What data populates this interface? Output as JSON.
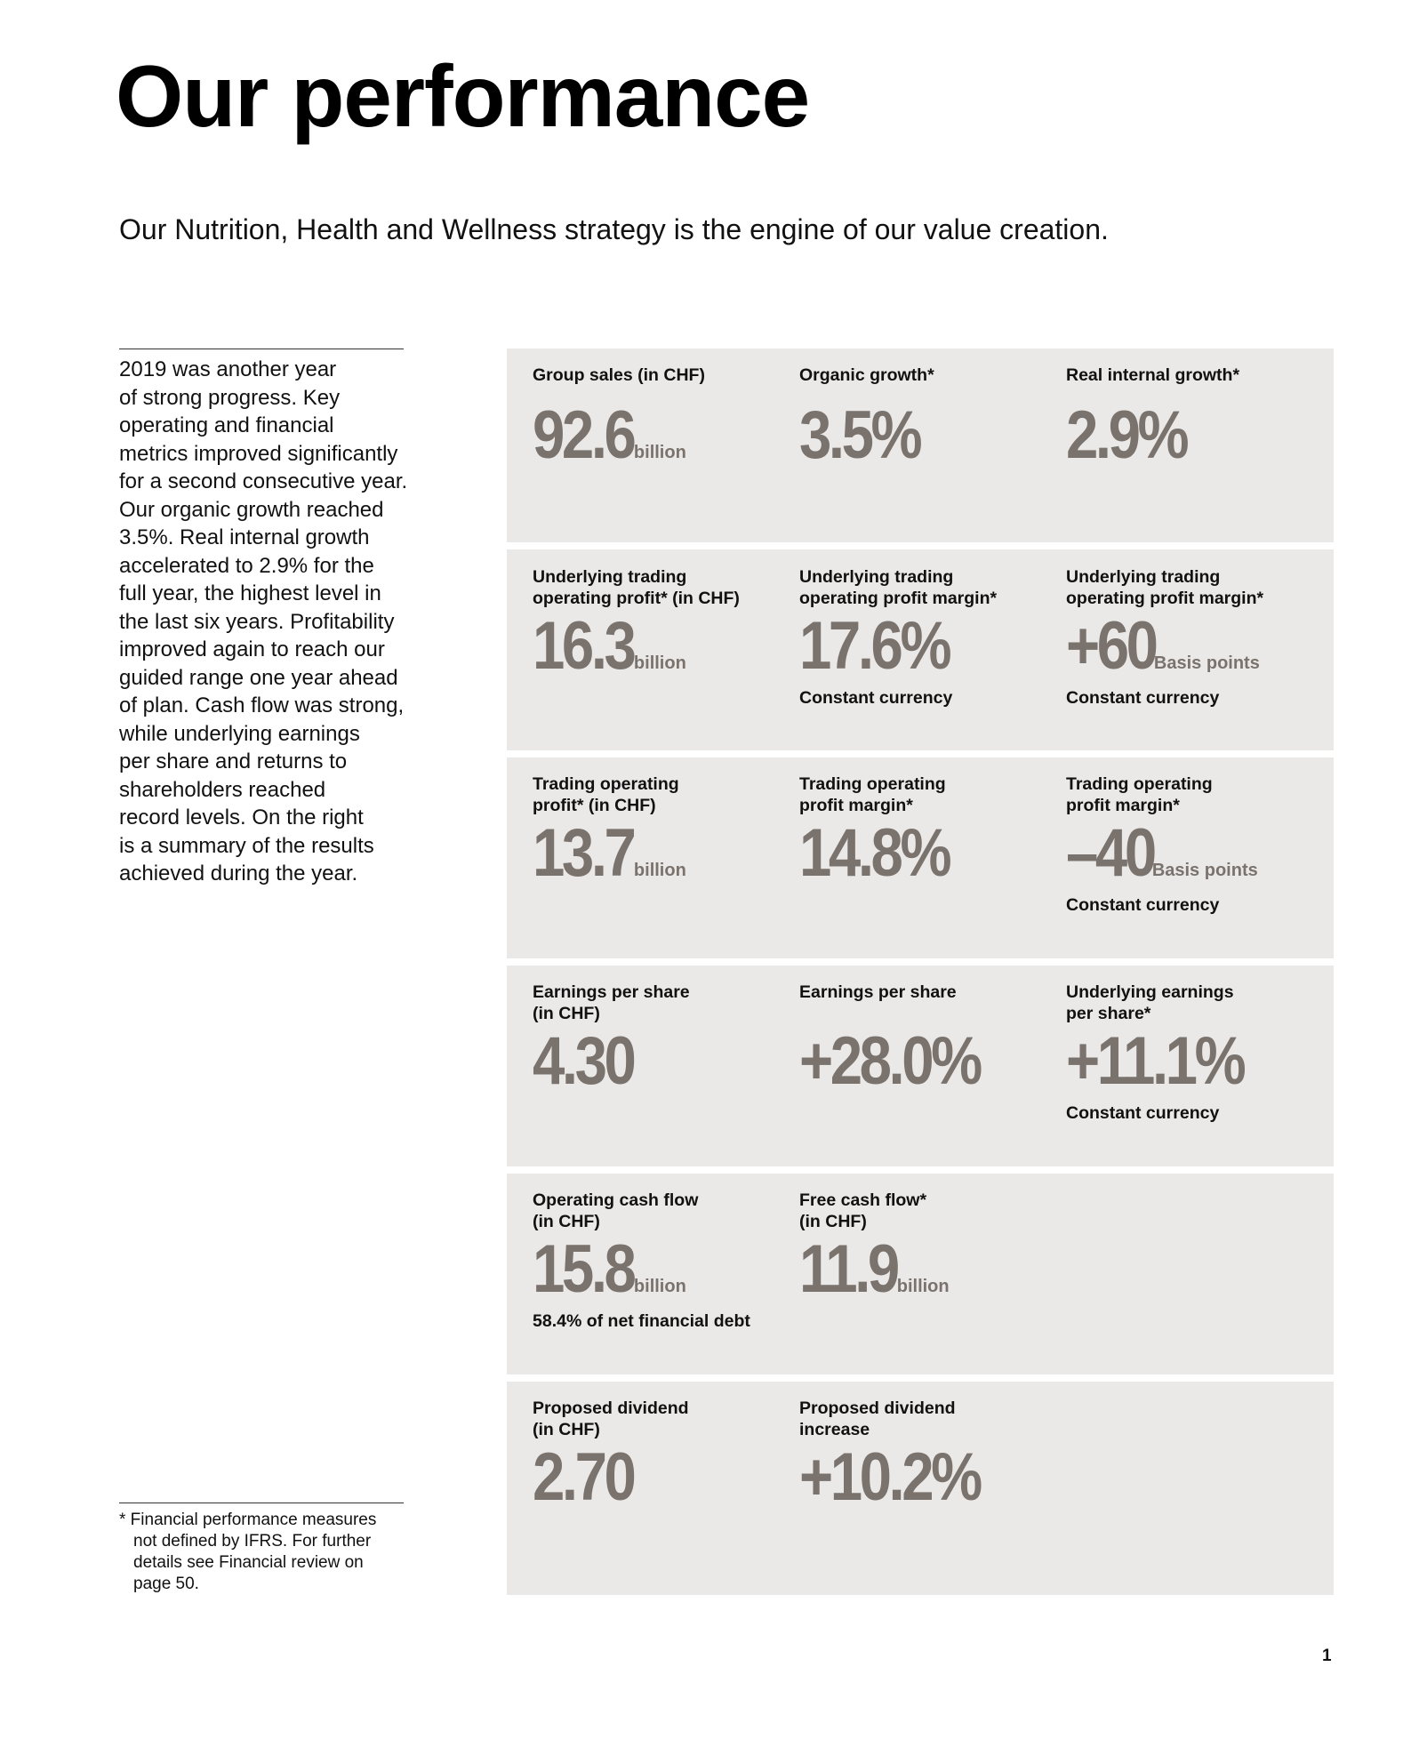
{
  "header": {
    "title": "Our performance",
    "subtitle": "Our Nutrition, Health and Wellness strategy is the engine of our value creation."
  },
  "intro": {
    "lines": [
      "2019 was another year",
      "of strong progress. Key",
      "operating and financial",
      "metrics improved significantly",
      "for a second consecutive year.",
      "Our organic growth reached",
      "3.5%. Real internal growth",
      "accelerated to 2.9% for the",
      "full year, the highest level in",
      "the last six years. Profitability",
      "improved again to reach our",
      "guided range one year ahead",
      "of plan. Cash flow was strong,",
      "while underlying earnings",
      "per share and returns to",
      "shareholders reached",
      "record levels. On the right",
      "is a summary of the results",
      "achieved during the year."
    ]
  },
  "footnote": {
    "lines": [
      "* Financial performance measures",
      "not defined by IFRS. For further",
      "details see Financial review on",
      "page 50."
    ]
  },
  "panels": [
    {
      "metrics": [
        {
          "label1": "Group sales (in CHF)",
          "label2": "",
          "value": "92.6",
          "unit": "billion",
          "note": ""
        },
        {
          "label1": "Organic growth*",
          "label2": "",
          "value": "3.5%",
          "unit": "",
          "note": ""
        },
        {
          "label1": "Real internal growth*",
          "label2": "",
          "value": "2.9%",
          "unit": "",
          "note": ""
        }
      ]
    },
    {
      "metrics": [
        {
          "label1": "Underlying trading",
          "label2": "operating profit* (in CHF)",
          "value": "16.3",
          "unit": "billion",
          "note": ""
        },
        {
          "label1": "Underlying trading",
          "label2": "operating profit margin*",
          "value": "17.6%",
          "unit": "",
          "note": "Constant currency"
        },
        {
          "label1": "Underlying trading",
          "label2": "operating profit margin*",
          "value": "+60",
          "unit": "Basis points",
          "note": "Constant currency"
        }
      ]
    },
    {
      "metrics": [
        {
          "label1": "Trading operating",
          "label2": "profit* (in CHF)",
          "value": "13.7",
          "unit": "billion",
          "note": ""
        },
        {
          "label1": "Trading operating",
          "label2": "profit margin*",
          "value": "14.8%",
          "unit": "",
          "note": ""
        },
        {
          "label1": "Trading operating",
          "label2": "profit margin*",
          "value": "–40",
          "unit": "Basis points",
          "note": "Constant currency"
        }
      ]
    },
    {
      "metrics": [
        {
          "label1": "Earnings per share",
          "label2": "(in CHF)",
          "value": "4.30",
          "unit": "",
          "note": ""
        },
        {
          "label1": "Earnings per share",
          "label2": "",
          "value": "+28.0%",
          "unit": "",
          "note": ""
        },
        {
          "label1": "Underlying earnings",
          "label2": "per share*",
          "value": "+11.1%",
          "unit": "",
          "note": "Constant currency"
        }
      ]
    },
    {
      "metrics": [
        {
          "label1": "Operating cash flow",
          "label2": "(in CHF)",
          "value": "15.8",
          "unit": "billion",
          "note": "58.4% of net financial debt"
        },
        {
          "label1": "Free cash flow*",
          "label2": "(in CHF)",
          "value": "11.9",
          "unit": "billion",
          "note": ""
        }
      ]
    },
    {
      "metrics": [
        {
          "label1": "Proposed dividend",
          "label2": "(in CHF)",
          "value": "2.70",
          "unit": "",
          "note": ""
        },
        {
          "label1": "Proposed dividend",
          "label2": "increase",
          "value": "+10.2%",
          "unit": "",
          "note": ""
        }
      ]
    }
  ],
  "page_number": "1"
}
